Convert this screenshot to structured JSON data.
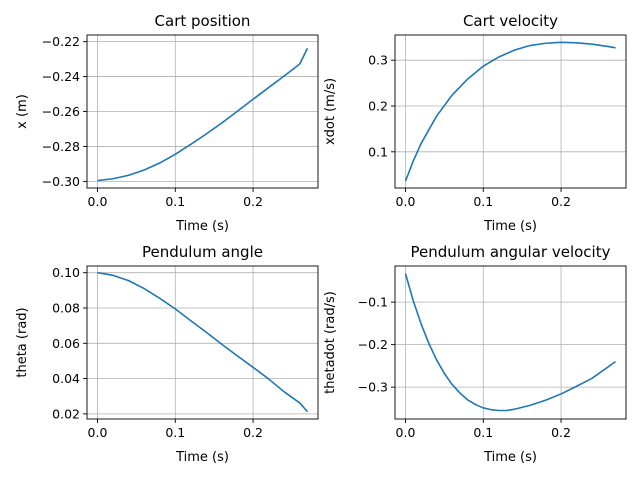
{
  "colors": {
    "line": "#1f77b4",
    "grid": "#b0b0b0",
    "axes": "#000000"
  },
  "chart_data": [
    {
      "type": "line",
      "title": "Cart position",
      "xlabel": "Time (s)",
      "ylabel": "x (m)",
      "xlim": [
        -0.0135,
        0.2835
      ],
      "ylim": [
        -0.3038,
        -0.2162
      ],
      "xticks": [
        0.0,
        0.1,
        0.2
      ],
      "xtick_labels": [
        "0.0",
        "0.1",
        "0.2"
      ],
      "yticks": [
        -0.3,
        -0.28,
        -0.26,
        -0.24,
        -0.22
      ],
      "ytick_labels": [
        "−0.30",
        "−0.28",
        "−0.26",
        "−0.24",
        "−0.22"
      ],
      "grid": true,
      "series": [
        {
          "x": [
            0.0,
            0.02,
            0.04,
            0.06,
            0.08,
            0.1,
            0.12,
            0.14,
            0.16,
            0.18,
            0.2,
            0.22,
            0.24,
            0.26,
            0.27
          ],
          "y": [
            -0.2995,
            -0.2985,
            -0.2965,
            -0.2935,
            -0.2895,
            -0.2845,
            -0.2788,
            -0.2728,
            -0.2665,
            -0.2598,
            -0.253,
            -0.2463,
            -0.2397,
            -0.2328,
            -0.2238
          ]
        }
      ]
    },
    {
      "type": "line",
      "title": "Cart velocity",
      "xlabel": "Time (s)",
      "ylabel": "xdot (m/s)",
      "xlim": [
        -0.0135,
        0.2835
      ],
      "ylim": [
        0.021,
        0.355
      ],
      "xticks": [
        0.0,
        0.1,
        0.2
      ],
      "xtick_labels": [
        "0.0",
        "0.1",
        "0.2"
      ],
      "yticks": [
        0.1,
        0.2,
        0.3
      ],
      "ytick_labels": [
        "0.1",
        "0.2",
        "0.3"
      ],
      "grid": true,
      "series": [
        {
          "x": [
            0.0,
            0.01,
            0.02,
            0.04,
            0.06,
            0.08,
            0.1,
            0.12,
            0.14,
            0.16,
            0.18,
            0.2,
            0.22,
            0.24,
            0.26,
            0.27
          ],
          "y": [
            0.036,
            0.08,
            0.118,
            0.178,
            0.224,
            0.259,
            0.287,
            0.307,
            0.322,
            0.332,
            0.337,
            0.339,
            0.338,
            0.335,
            0.33,
            0.327
          ]
        }
      ]
    },
    {
      "type": "line",
      "title": "Pendulum angle",
      "xlabel": "Time (s)",
      "ylabel": "theta (rad)",
      "xlim": [
        -0.0135,
        0.2835
      ],
      "ylim": [
        0.0171,
        0.1038
      ],
      "xticks": [
        0.0,
        0.1,
        0.2
      ],
      "xtick_labels": [
        "0.0",
        "0.1",
        "0.2"
      ],
      "yticks": [
        0.02,
        0.04,
        0.06,
        0.08,
        0.1
      ],
      "ytick_labels": [
        "0.02",
        "0.04",
        "0.06",
        "0.08",
        "0.10"
      ],
      "grid": true,
      "series": [
        {
          "x": [
            0.0,
            0.02,
            0.04,
            0.06,
            0.08,
            0.1,
            0.12,
            0.14,
            0.16,
            0.18,
            0.2,
            0.22,
            0.24,
            0.26,
            0.27
          ],
          "y": [
            0.1,
            0.0985,
            0.0955,
            0.091,
            0.0855,
            0.0795,
            0.0728,
            0.0662,
            0.0594,
            0.0528,
            0.0464,
            0.0398,
            0.0325,
            0.0262,
            0.0212
          ]
        }
      ]
    },
    {
      "type": "line",
      "title": "Pendulum angular velocity",
      "xlabel": "Time (s)",
      "ylabel": "thetadot (rad/s)",
      "xlim": [
        -0.0135,
        0.2835
      ],
      "ylim": [
        -0.375,
        -0.015
      ],
      "xticks": [
        0.0,
        0.1,
        0.2
      ],
      "xtick_labels": [
        "0.0",
        "0.1",
        "0.2"
      ],
      "yticks": [
        -0.3,
        -0.2,
        -0.1
      ],
      "ytick_labels": [
        "−0.3",
        "−0.2",
        "−0.1"
      ],
      "grid": true,
      "series": [
        {
          "x": [
            0.0,
            0.01,
            0.02,
            0.03,
            0.04,
            0.05,
            0.06,
            0.07,
            0.08,
            0.09,
            0.1,
            0.11,
            0.12,
            0.13,
            0.14,
            0.16,
            0.18,
            0.2,
            0.22,
            0.24,
            0.27
          ],
          "y": [
            -0.033,
            -0.097,
            -0.151,
            -0.197,
            -0.236,
            -0.268,
            -0.294,
            -0.314,
            -0.33,
            -0.341,
            -0.349,
            -0.353,
            -0.355,
            -0.355,
            -0.352,
            -0.343,
            -0.331,
            -0.316,
            -0.298,
            -0.279,
            -0.24
          ]
        }
      ]
    }
  ]
}
